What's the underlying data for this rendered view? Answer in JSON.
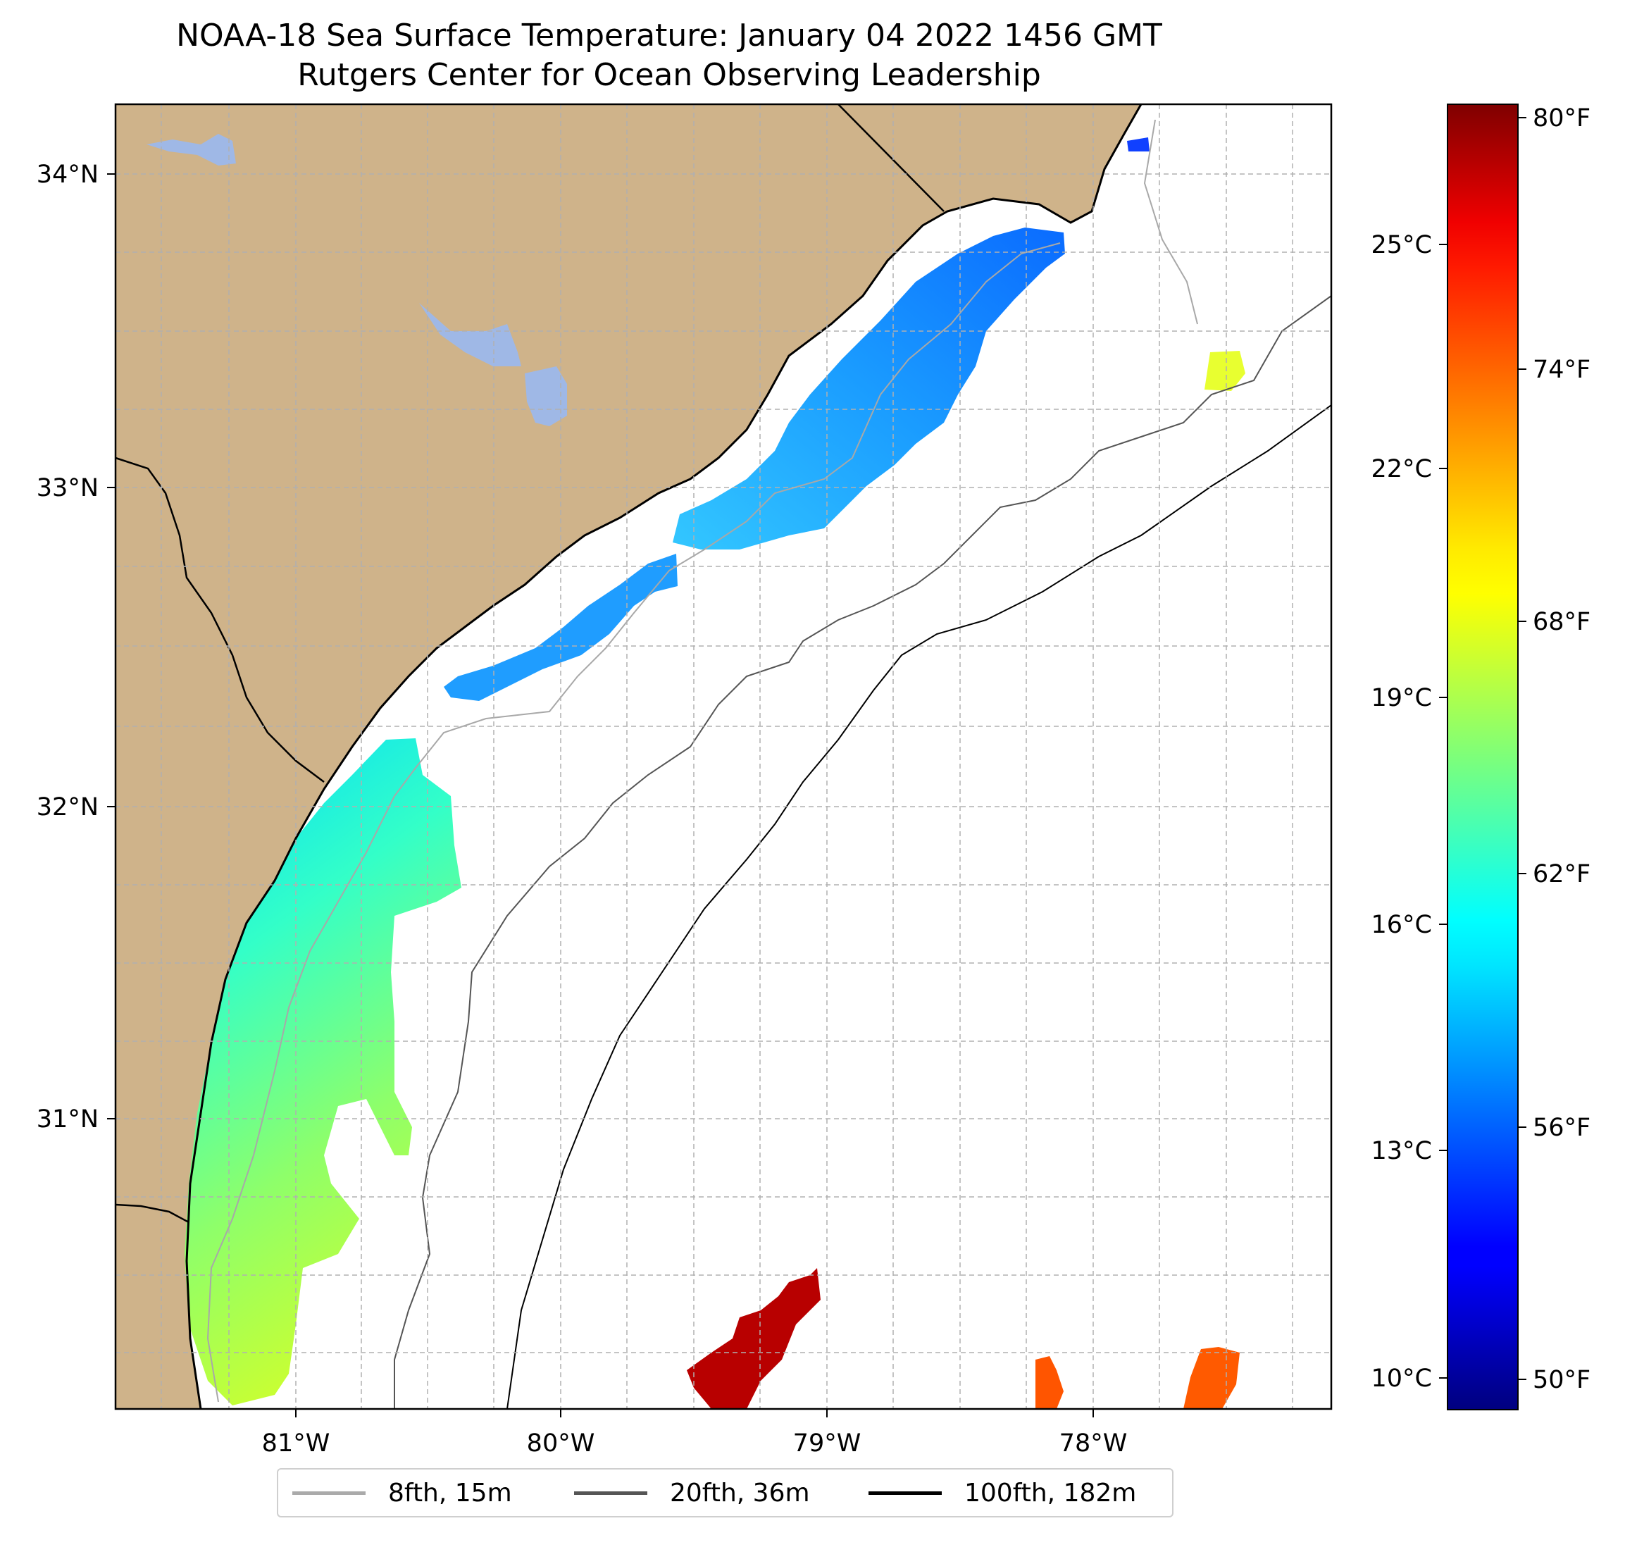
{
  "title": "NOAA-18 Sea Surface Temperature: January 04 2022 1456 GMT",
  "subtitle": "Rutgers Center for Ocean Observing Leadership",
  "colors": {
    "land": "#cfb38a",
    "lake": "#9fb8e6",
    "coast": "#000000",
    "grid": "#b0b0b0"
  },
  "map": {
    "lon_range": [
      -81.68,
      -77.1
    ],
    "lat_range": [
      30.06,
      34.22
    ],
    "lat_ticks": [
      "34°N",
      "33°N",
      "32°N",
      "31°N"
    ],
    "lon_ticks": [
      "81°W",
      "80°W",
      "79°W",
      "78°W"
    ],
    "grid": true
  },
  "colorbar": {
    "colormap": "jet",
    "celsius_ticks": [
      "25°C",
      "22°C",
      "19°C",
      "16°C",
      "13°C",
      "10°C"
    ],
    "fahrenheit_ticks": [
      "80°F",
      "74°F",
      "68°F",
      "62°F",
      "56°F",
      "50°F"
    ]
  },
  "legend": {
    "placement": "bottom-center",
    "items": [
      {
        "label": "8fth, 15m",
        "color": "#aaaaaa"
      },
      {
        "label": "20fth, 36m",
        "color": "#555555"
      },
      {
        "label": "100fth, 182m",
        "color": "#000000"
      }
    ]
  }
}
